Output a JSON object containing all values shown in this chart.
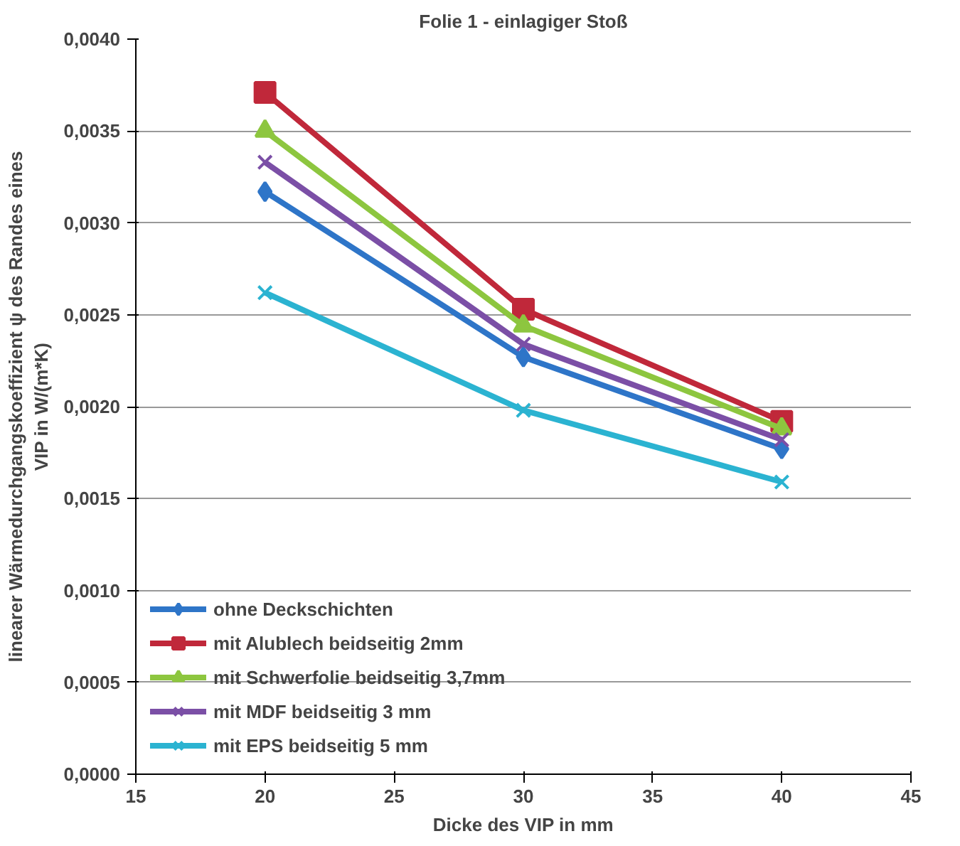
{
  "chart_data": {
    "type": "line",
    "title": "Folie 1 - einlagiger Stoß",
    "xlabel": "Dicke des VIP in mm",
    "ylabel": "linearer Wärmedurchgangskoeffizient ψ des Randes eines\nVIP in W/(m*K)",
    "x": [
      20,
      30,
      40
    ],
    "xlim": [
      15,
      45
    ],
    "xticks": [
      15,
      20,
      25,
      30,
      35,
      40,
      45
    ],
    "ylim": [
      0,
      0.004
    ],
    "yticks": [
      {
        "value": 0,
        "label": "0,0000"
      },
      {
        "value": 0.0005,
        "label": "0,0005"
      },
      {
        "value": 0.001,
        "label": "0,0010"
      },
      {
        "value": 0.0015,
        "label": "0,0015"
      },
      {
        "value": 0.002,
        "label": "0,0020"
      },
      {
        "value": 0.0025,
        "label": "0,0025"
      },
      {
        "value": 0.003,
        "label": "0,0030"
      },
      {
        "value": 0.0035,
        "label": "0,0035"
      },
      {
        "value": 0.004,
        "label": "0,0040"
      }
    ],
    "grid": "y",
    "legend": "bottom left",
    "line_style": "solid",
    "series": [
      {
        "name": "ohne Deckschichten",
        "color": "#2e75c8",
        "marker": "diamond",
        "values": [
          0.00317,
          0.00227,
          0.00177
        ]
      },
      {
        "name": "mit Alublech beidseitig 2mm",
        "color": "#c0283a",
        "marker": "square",
        "values": [
          0.00371,
          0.00253,
          0.00192
        ]
      },
      {
        "name": "mit Schwerfolie beidseitig 3,7mm",
        "color": "#8dc63f",
        "marker": "triangle",
        "values": [
          0.0035,
          0.00244,
          0.00188
        ]
      },
      {
        "name": "mit MDF beidseitig 3 mm",
        "color": "#7b4fa6",
        "marker": "cross",
        "values": [
          0.00333,
          0.00234,
          0.00182
        ]
      },
      {
        "name": "mit EPS beidseitig 5 mm",
        "color": "#2bb3d1",
        "marker": "cross",
        "values": [
          0.00262,
          0.00198,
          0.00159
        ]
      }
    ]
  }
}
